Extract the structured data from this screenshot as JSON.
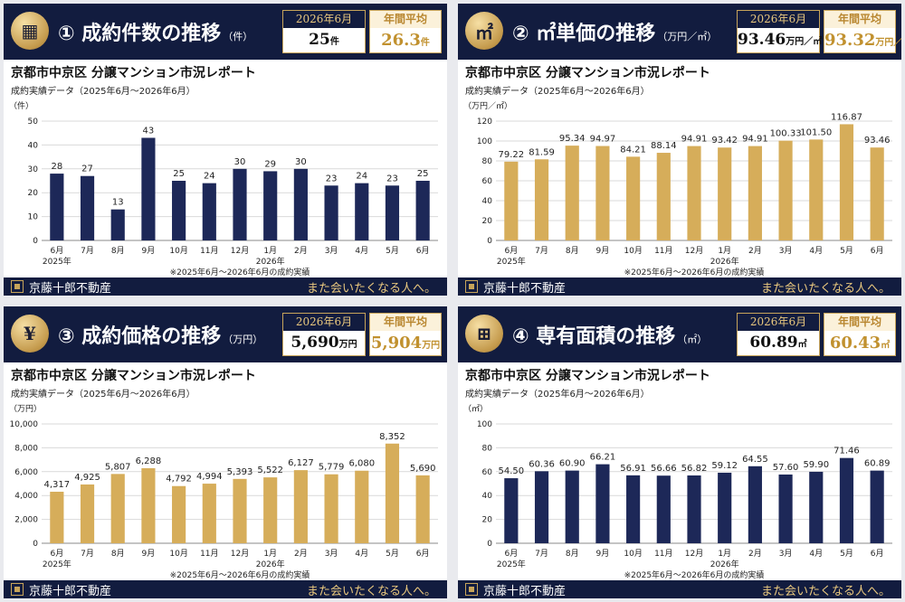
{
  "brand": "京藤十郎不動産",
  "slogan": "また会いたくなる人へ。",
  "report_title": "京都市中京区 分譲マンション市況レポート",
  "report_sub": "成約実績データ（2025年6月～2026年6月）",
  "note": "※2025年6月～2026年6月の成約実績",
  "current_label": "2026年6月",
  "avg_label": "年間平均",
  "panels": [
    {
      "icon": "building-icon",
      "icon_glyph": "▦",
      "title": "① 成約件数の推移",
      "unit": "（件）",
      "cur_value": "25",
      "cur_unit": "件",
      "avg_value": "26.3",
      "avg_unit": "件"
    },
    {
      "icon": "sqm-icon",
      "icon_glyph": "㎡",
      "title": "② ㎡単価の推移",
      "unit": "（万円／㎡）",
      "cur_value": "93.46",
      "cur_unit": "万円／㎡",
      "avg_value": "93.32",
      "avg_unit": "万円／㎡"
    },
    {
      "icon": "yen-icon",
      "icon_glyph": "¥",
      "title": "③ 成約価格の推移",
      "unit": "（万円）",
      "cur_value": "5,690",
      "cur_unit": "万円",
      "avg_value": "5,904",
      "avg_unit": "万円"
    },
    {
      "icon": "floor-plan-icon",
      "icon_glyph": "⊞",
      "title": "④ 専有面積の推移",
      "unit": "（㎡）",
      "cur_value": "60.89",
      "cur_unit": "㎡",
      "avg_value": "60.43",
      "avg_unit": "㎡"
    }
  ],
  "chart_data": [
    {
      "type": "bar",
      "color": "#1d2858",
      "categories": [
        "6月",
        "7月",
        "8月",
        "9月",
        "10月",
        "11月",
        "12月",
        "1月",
        "2月",
        "3月",
        "4月",
        "5月",
        "6月"
      ],
      "year_labels": [
        "2025年",
        "2026年"
      ],
      "values": [
        28,
        27,
        13,
        43,
        25,
        24,
        30,
        29,
        30,
        23,
        24,
        23,
        25
      ],
      "labels": [
        "28",
        "27",
        "13",
        "43",
        "25",
        "24",
        "30",
        "29",
        "30",
        "23",
        "24",
        "23",
        "25"
      ],
      "ylabel": "（件）",
      "ylim": [
        0,
        50
      ],
      "yticks": [
        0,
        10,
        20,
        30,
        40,
        50
      ],
      "ytick_labels": [
        "0",
        "10",
        "20",
        "30",
        "40",
        "50"
      ]
    },
    {
      "type": "bar",
      "color": "#d6ad5a",
      "categories": [
        "6月",
        "7月",
        "8月",
        "9月",
        "10月",
        "11月",
        "12月",
        "1月",
        "2月",
        "3月",
        "4月",
        "5月",
        "6月"
      ],
      "year_labels": [
        "2025年",
        "2026年"
      ],
      "values": [
        79.22,
        81.59,
        95.34,
        94.97,
        84.21,
        88.14,
        94.91,
        93.42,
        94.91,
        100.33,
        101.5,
        116.87,
        93.46
      ],
      "labels": [
        "79.22",
        "81.59",
        "95.34",
        "94.97",
        "84.21",
        "88.14",
        "94.91",
        "93.42",
        "94.91",
        "100.33",
        "101.50",
        "116.87",
        "93.46"
      ],
      "ylabel": "（万円／㎡）",
      "ylim": [
        0,
        120
      ],
      "yticks": [
        0,
        20,
        40,
        60,
        80,
        100,
        120
      ],
      "ytick_labels": [
        "0",
        "20",
        "40",
        "60",
        "80",
        "100",
        "120"
      ]
    },
    {
      "type": "bar",
      "color": "#d6ad5a",
      "categories": [
        "6月",
        "7月",
        "8月",
        "9月",
        "10月",
        "11月",
        "12月",
        "1月",
        "2月",
        "3月",
        "4月",
        "5月",
        "6月"
      ],
      "year_labels": [
        "2025年",
        "2026年"
      ],
      "values": [
        4317,
        4925,
        5807,
        6288,
        4792,
        4994,
        5393,
        5522,
        6127,
        5779,
        6080,
        8352,
        5690
      ],
      "labels": [
        "4,317",
        "4,925",
        "5,807",
        "6,288",
        "4,792",
        "4,994",
        "5,393",
        "5,522",
        "6,127",
        "5,779",
        "6,080",
        "8,352",
        "5,690"
      ],
      "ylabel": "（万円）",
      "ylim": [
        0,
        10000
      ],
      "yticks": [
        0,
        2000,
        4000,
        6000,
        8000,
        10000
      ],
      "ytick_labels": [
        "0",
        "2,000",
        "4,000",
        "6,000",
        "8,000",
        "10,000"
      ]
    },
    {
      "type": "bar",
      "color": "#1d2858",
      "categories": [
        "6月",
        "7月",
        "8月",
        "9月",
        "10月",
        "11月",
        "12月",
        "1月",
        "2月",
        "3月",
        "4月",
        "5月",
        "6月"
      ],
      "year_labels": [
        "2025年",
        "2026年"
      ],
      "values": [
        54.5,
        60.36,
        60.9,
        66.21,
        56.91,
        56.66,
        56.82,
        59.12,
        64.55,
        57.6,
        59.9,
        71.46,
        60.89
      ],
      "labels": [
        "54.50",
        "60.36",
        "60.90",
        "66.21",
        "56.91",
        "56.66",
        "56.82",
        "59.12",
        "64.55",
        "57.60",
        "59.90",
        "71.46",
        "60.89"
      ],
      "ylabel": "（㎡）",
      "ylim": [
        0,
        100
      ],
      "yticks": [
        0,
        20,
        40,
        60,
        80,
        100
      ],
      "ytick_labels": [
        "0",
        "20",
        "40",
        "60",
        "80",
        "100"
      ]
    }
  ]
}
